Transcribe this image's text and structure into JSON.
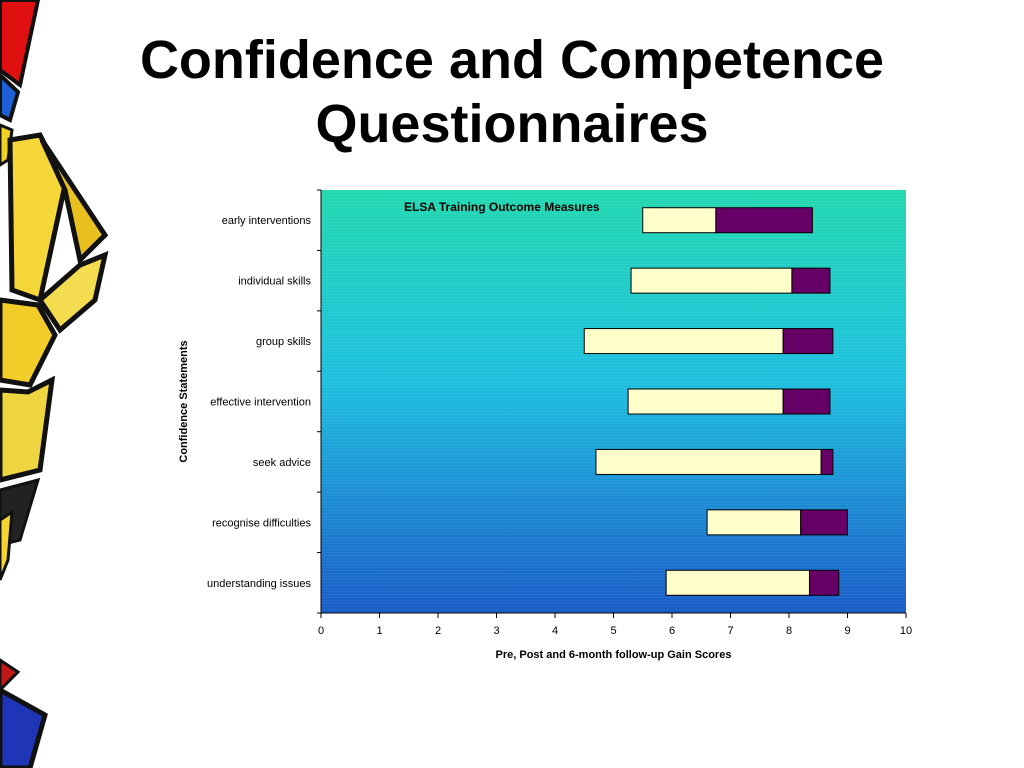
{
  "slide": {
    "title_line1": "Confidence and Competence",
    "title_line2": "Questionnaires"
  },
  "colors": {
    "pre_to_post": "#ffffcc",
    "post_to_followup": "#660066",
    "plot_top": "#22d8b0",
    "plot_mid": "#1ec0e0",
    "plot_bottom": "#1a5cc8"
  },
  "chart_data": {
    "type": "bar",
    "orientation": "horizontal",
    "stacked": "floating",
    "title": "ELSA Training Outcome Measures",
    "xlabel": "Pre, Post and 6-month follow-up Gain Scores",
    "ylabel": "Confidence Statements",
    "xlim": [
      0,
      10
    ],
    "xticks": [
      0,
      1,
      2,
      3,
      4,
      5,
      6,
      7,
      8,
      9,
      10
    ],
    "categories": [
      "early interventions",
      "individual skills",
      "group skills",
      "effective intervention",
      "seek advice",
      "recognise difficulties",
      "understanding issues"
    ],
    "start": [
      5.5,
      5.3,
      4.5,
      5.25,
      4.7,
      6.6,
      5.9
    ],
    "series": [
      {
        "values": [
          1.25,
          2.75,
          3.4,
          2.65,
          3.85,
          1.6,
          2.45
        ]
      },
      {
        "values": [
          1.65,
          0.65,
          0.85,
          0.8,
          0.2,
          0.8,
          0.5
        ]
      }
    ],
    "grid": false
  }
}
